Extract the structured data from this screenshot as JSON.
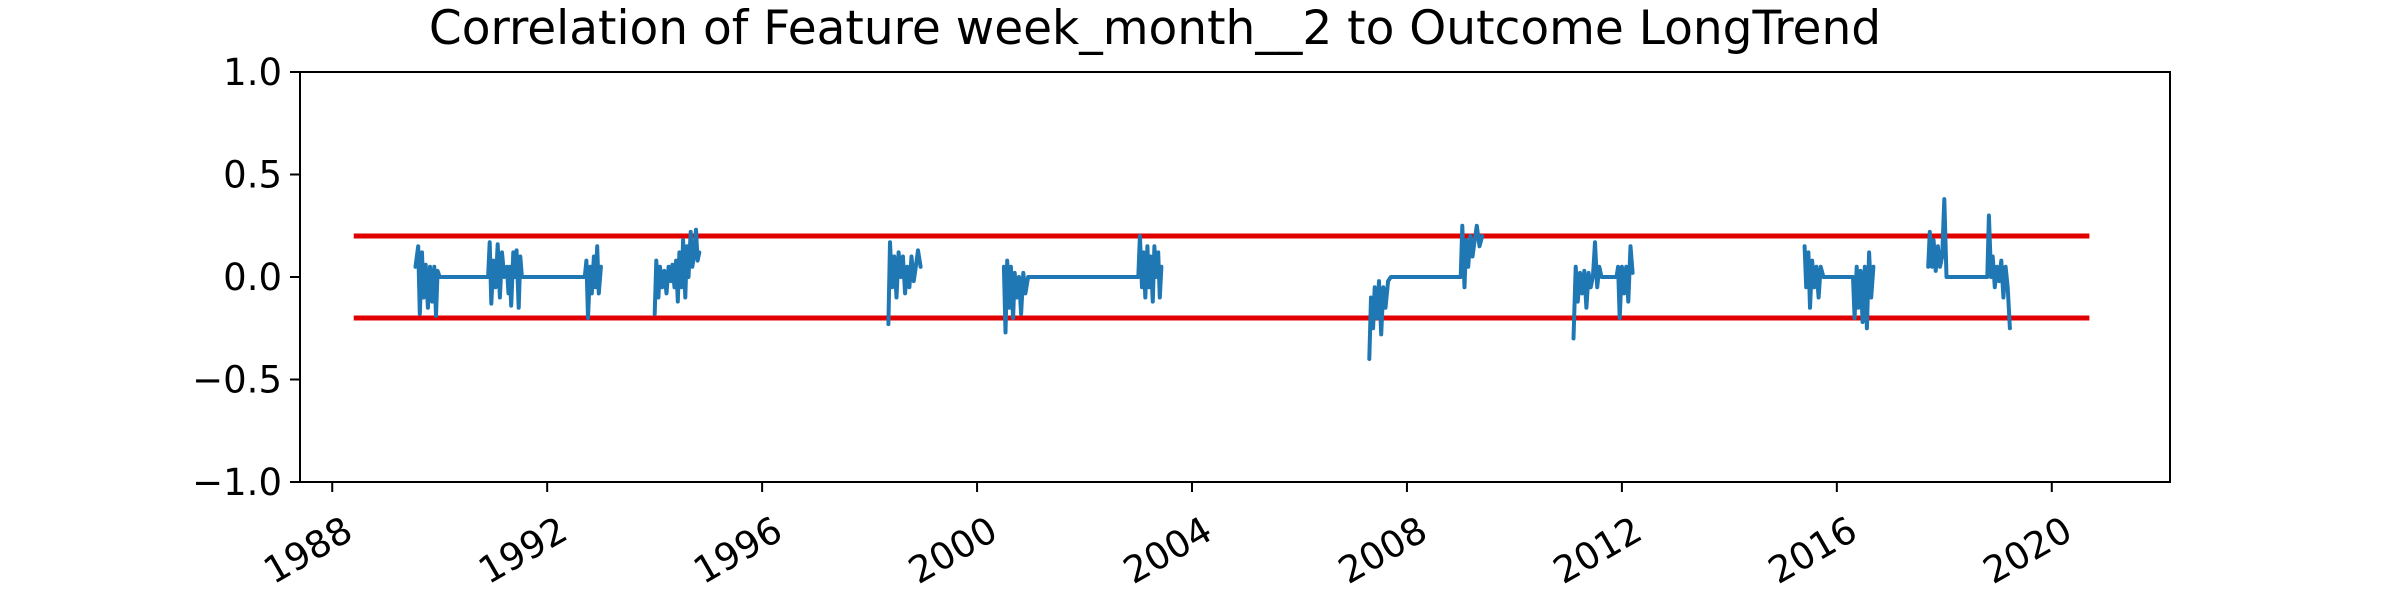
{
  "chart_data": {
    "type": "line",
    "title": "Correlation of Feature week_month__2 to Outcome LongTrend",
    "xlabel": "",
    "ylabel": "",
    "xlim": [
      1987.4,
      2022.2
    ],
    "ylim": [
      -1.0,
      1.0
    ],
    "xticks": [
      1988,
      1992,
      1996,
      2000,
      2004,
      2008,
      2012,
      2016,
      2020
    ],
    "xtick_labels": [
      "1988",
      "1992",
      "1996",
      "2000",
      "2004",
      "2008",
      "2012",
      "2016",
      "2020"
    ],
    "yticks": [
      -1.0,
      -0.5,
      0.0,
      0.5,
      1.0
    ],
    "ytick_labels": [
      "−1.0",
      "−0.5",
      "0.0",
      "0.5",
      "1.0"
    ],
    "grid": false,
    "threshold_lines": [
      {
        "y": 0.2,
        "x_start": 1988.4,
        "x_end": 2020.7,
        "color": "#e00000"
      },
      {
        "y": -0.2,
        "x_start": 1988.4,
        "x_end": 2020.7,
        "color": "#e00000"
      }
    ],
    "series_color": "#1f77b4",
    "series": [
      {
        "segments": [
          [
            [
              1989.55,
              0.05
            ],
            [
              1989.6,
              0.15
            ],
            [
              1989.63,
              -0.18
            ],
            [
              1989.67,
              0.12
            ],
            [
              1989.7,
              -0.1
            ],
            [
              1989.74,
              0.06
            ],
            [
              1989.78,
              -0.15
            ],
            [
              1989.82,
              0.05
            ],
            [
              1989.86,
              -0.12
            ],
            [
              1989.9,
              0.05
            ],
            [
              1989.93,
              -0.19
            ],
            [
              1989.96,
              0.03
            ],
            [
              1990.0,
              0.0
            ],
            [
              1990.9,
              0.0
            ],
            [
              1990.93,
              0.17
            ],
            [
              1990.96,
              -0.13
            ],
            [
              1991.0,
              0.08
            ],
            [
              1991.04,
              -0.05
            ],
            [
              1991.08,
              0.16
            ],
            [
              1991.12,
              -0.1
            ],
            [
              1991.16,
              0.12
            ],
            [
              1991.2,
              0.0
            ],
            [
              1991.25,
              0.05
            ],
            [
              1991.28,
              -0.08
            ],
            [
              1991.3,
              0.05
            ],
            [
              1991.33,
              -0.14
            ],
            [
              1991.37,
              0.12
            ],
            [
              1991.4,
              0.0
            ],
            [
              1991.43,
              0.13
            ],
            [
              1991.47,
              -0.15
            ],
            [
              1991.5,
              0.1
            ],
            [
              1991.53,
              0.0
            ],
            [
              1992.7,
              0.0
            ],
            [
              1992.73,
              0.08
            ],
            [
              1992.76,
              -0.2
            ],
            [
              1992.8,
              0.05
            ],
            [
              1992.83,
              -0.08
            ],
            [
              1992.87,
              0.1
            ],
            [
              1992.9,
              -0.05
            ],
            [
              1992.93,
              0.15
            ],
            [
              1992.96,
              -0.08
            ],
            [
              1993.0,
              0.05
            ]
          ],
          [
            [
              1994.0,
              -0.18
            ],
            [
              1994.03,
              0.08
            ],
            [
              1994.07,
              -0.1
            ],
            [
              1994.1,
              0.05
            ],
            [
              1994.14,
              -0.05
            ],
            [
              1994.18,
              0.03
            ],
            [
              1994.22,
              -0.08
            ],
            [
              1994.26,
              0.05
            ],
            [
              1994.3,
              -0.02
            ],
            [
              1994.33,
              0.06
            ],
            [
              1994.37,
              -0.05
            ],
            [
              1994.4,
              0.08
            ],
            [
              1994.43,
              -0.12
            ],
            [
              1994.46,
              0.12
            ],
            [
              1994.5,
              -0.05
            ],
            [
              1994.53,
              0.18
            ],
            [
              1994.57,
              -0.1
            ],
            [
              1994.6,
              0.15
            ],
            [
              1994.63,
              0.0
            ],
            [
              1994.67,
              0.22
            ],
            [
              1994.7,
              0.05
            ],
            [
              1994.73,
              0.1
            ],
            [
              1994.77,
              0.23
            ],
            [
              1994.8,
              0.08
            ],
            [
              1994.83,
              0.12
            ]
          ],
          [
            [
              1998.35,
              -0.23
            ],
            [
              1998.38,
              0.17
            ],
            [
              1998.42,
              -0.05
            ],
            [
              1998.46,
              0.1
            ],
            [
              1998.5,
              -0.1
            ],
            [
              1998.54,
              0.12
            ],
            [
              1998.58,
              0.0
            ],
            [
              1998.62,
              0.1
            ],
            [
              1998.66,
              -0.08
            ],
            [
              1998.7,
              0.05
            ],
            [
              1998.74,
              -0.05
            ],
            [
              1998.78,
              0.1
            ],
            [
              1998.82,
              -0.02
            ],
            [
              1998.86,
              0.05
            ],
            [
              1998.9,
              0.13
            ],
            [
              1998.95,
              0.05
            ]
          ],
          [
            [
              2000.5,
              0.05
            ],
            [
              2000.53,
              -0.27
            ],
            [
              2000.56,
              0.08
            ],
            [
              2000.6,
              -0.15
            ],
            [
              2000.63,
              0.05
            ],
            [
              2000.67,
              -0.2
            ],
            [
              2000.7,
              0.02
            ],
            [
              2000.74,
              -0.1
            ],
            [
              2000.78,
              0.0
            ],
            [
              2000.82,
              -0.18
            ],
            [
              2000.86,
              0.02
            ],
            [
              2000.9,
              -0.08
            ],
            [
              2000.95,
              0.0
            ],
            [
              2003.0,
              0.0
            ],
            [
              2003.03,
              0.2
            ],
            [
              2003.07,
              -0.05
            ],
            [
              2003.1,
              0.12
            ],
            [
              2003.13,
              -0.1
            ],
            [
              2003.17,
              0.15
            ],
            [
              2003.2,
              -0.05
            ],
            [
              2003.23,
              0.1
            ],
            [
              2003.27,
              -0.12
            ],
            [
              2003.3,
              0.15
            ],
            [
              2003.33,
              0.0
            ],
            [
              2003.37,
              0.12
            ],
            [
              2003.4,
              -0.1
            ],
            [
              2003.43,
              0.05
            ]
          ],
          [
            [
              2007.3,
              -0.4
            ],
            [
              2007.33,
              -0.1
            ],
            [
              2007.37,
              -0.25
            ],
            [
              2007.4,
              -0.05
            ],
            [
              2007.44,
              -0.2
            ],
            [
              2007.48,
              -0.02
            ],
            [
              2007.52,
              -0.28
            ],
            [
              2007.56,
              -0.05
            ],
            [
              2007.6,
              -0.15
            ],
            [
              2007.65,
              -0.02
            ],
            [
              2007.7,
              0.0
            ],
            [
              2009.0,
              0.0
            ],
            [
              2009.03,
              0.25
            ],
            [
              2009.07,
              -0.05
            ],
            [
              2009.1,
              0.18
            ],
            [
              2009.14,
              0.05
            ],
            [
              2009.18,
              0.2
            ],
            [
              2009.22,
              0.1
            ],
            [
              2009.26,
              0.18
            ],
            [
              2009.3,
              0.25
            ],
            [
              2009.35,
              0.15
            ],
            [
              2009.4,
              0.2
            ]
          ],
          [
            [
              2011.1,
              -0.3
            ],
            [
              2011.14,
              0.05
            ],
            [
              2011.18,
              -0.12
            ],
            [
              2011.22,
              0.02
            ],
            [
              2011.26,
              -0.08
            ],
            [
              2011.3,
              0.03
            ],
            [
              2011.34,
              -0.15
            ],
            [
              2011.38,
              0.02
            ],
            [
              2011.42,
              -0.05
            ],
            [
              2011.46,
              0.0
            ],
            [
              2011.5,
              0.17
            ],
            [
              2011.54,
              -0.05
            ],
            [
              2011.58,
              0.05
            ],
            [
              2011.62,
              0.0
            ],
            [
              2011.9,
              0.0
            ],
            [
              2011.93,
              0.05
            ],
            [
              2011.96,
              -0.2
            ],
            [
              2012.0,
              0.05
            ],
            [
              2012.04,
              -0.08
            ],
            [
              2012.08,
              0.05
            ],
            [
              2012.12,
              -0.12
            ],
            [
              2012.16,
              0.15
            ],
            [
              2012.2,
              0.02
            ]
          ],
          [
            [
              2015.4,
              0.15
            ],
            [
              2015.43,
              -0.05
            ],
            [
              2015.47,
              0.12
            ],
            [
              2015.5,
              -0.15
            ],
            [
              2015.54,
              0.08
            ],
            [
              2015.58,
              -0.05
            ],
            [
              2015.62,
              0.05
            ],
            [
              2015.66,
              -0.1
            ],
            [
              2015.7,
              0.05
            ],
            [
              2015.75,
              0.0
            ],
            [
              2016.3,
              0.0
            ],
            [
              2016.33,
              -0.2
            ],
            [
              2016.37,
              0.05
            ],
            [
              2016.4,
              -0.15
            ],
            [
              2016.44,
              0.03
            ],
            [
              2016.48,
              -0.22
            ],
            [
              2016.52,
              0.05
            ],
            [
              2016.56,
              -0.25
            ],
            [
              2016.6,
              0.12
            ],
            [
              2016.64,
              -0.1
            ],
            [
              2016.68,
              0.05
            ]
          ],
          [
            [
              2017.7,
              0.05
            ],
            [
              2017.73,
              0.22
            ],
            [
              2017.77,
              0.05
            ],
            [
              2017.8,
              0.18
            ],
            [
              2017.84,
              0.03
            ],
            [
              2017.88,
              0.15
            ],
            [
              2017.92,
              0.05
            ],
            [
              2017.96,
              0.1
            ],
            [
              2018.0,
              0.38
            ],
            [
              2018.04,
              0.0
            ],
            [
              2018.8,
              0.0
            ],
            [
              2018.83,
              0.3
            ],
            [
              2018.87,
              0.0
            ],
            [
              2018.9,
              0.1
            ],
            [
              2018.94,
              -0.05
            ],
            [
              2018.98,
              0.05
            ],
            [
              2019.02,
              -0.02
            ],
            [
              2019.06,
              0.08
            ],
            [
              2019.1,
              -0.1
            ],
            [
              2019.14,
              0.05
            ],
            [
              2019.18,
              -0.05
            ],
            [
              2019.22,
              -0.25
            ]
          ]
        ]
      }
    ]
  }
}
